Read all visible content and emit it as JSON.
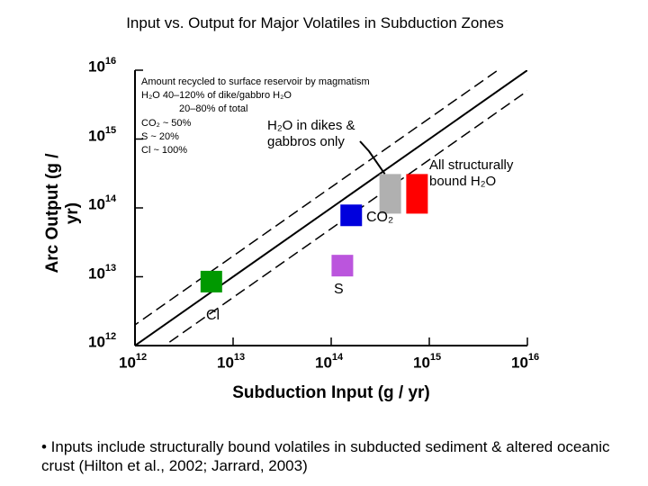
{
  "chart_data": {
    "type": "scatter",
    "title": "Input vs. Output for Major Volatiles in Subduction Zones",
    "xlabel": "Subduction Input (g / yr)",
    "ylabel": "Arc Output (g / yr)",
    "x_scale": "log",
    "y_scale": "log",
    "xlim": [
      1000000000000.0,
      1e+16
    ],
    "ylim": [
      1000000000000.0,
      1e+16
    ],
    "x_tick_exponents": [
      "12",
      "13",
      "14",
      "15",
      "16"
    ],
    "y_tick_exponents": [
      "12",
      "13",
      "14",
      "15",
      "16"
    ],
    "tick_base": "10",
    "grid": false,
    "reference_lines": [
      {
        "type": "solid",
        "description": "1:1 line",
        "factor": 1
      },
      {
        "type": "dashed",
        "factor": 2
      },
      {
        "type": "dashed",
        "factor": 0.5
      }
    ],
    "notes": [
      "Amount recycled to surface reservoir by magmatism",
      "H₂O 40–120% of dike/gabbro H₂O",
      "20–80% of total",
      "CO₂ ~ 50%",
      "S ~ 20%",
      "Cl ~ 100%"
    ],
    "points": [
      {
        "label": "H₂O in dikes & gabbros only",
        "x": 400000000000000.0,
        "y": 160000000000000.0,
        "color": "#b0b0b0"
      },
      {
        "label": "All structurally bound H₂O",
        "x": 750000000000000.0,
        "y": 160000000000000.0,
        "color": "#ff0000"
      },
      {
        "label": "CO₂",
        "x": 160000000000000.0,
        "y": 78000000000000.0,
        "color": "#0000dd"
      },
      {
        "label": "S",
        "x": 130000000000000.0,
        "y": 14500000000000.0,
        "color": "#bb55dd"
      },
      {
        "label": "Cl",
        "x": 6000000000000.0,
        "y": 8500000000000.0,
        "color": "#009900"
      }
    ]
  },
  "bullet_text": "• Inputs include structurally bound volatiles in subducted sediment & altered oceanic crust (Hilton et al., 2002; Jarrard, 2003)"
}
